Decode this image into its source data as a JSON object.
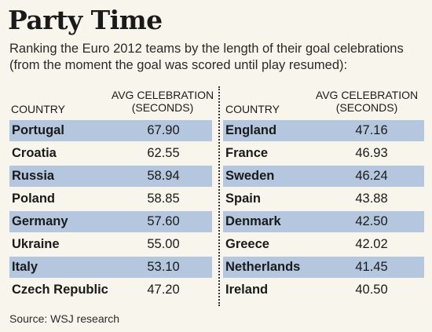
{
  "chart_data": {
    "type": "table",
    "title": "Party Time",
    "subtitle_lines": [
      "Ranking the Euro 2012 teams by the length of their goal celebrations",
      "(from the moment the goal was scored until play resumed):"
    ],
    "column_headers": {
      "country": "COUNTRY",
      "value_line1": "AVG CELEBRATION",
      "value_line2": "(SECONDS)"
    },
    "rows_left": [
      {
        "country": "Portugal",
        "value": "67.90"
      },
      {
        "country": "Croatia",
        "value": "62.55"
      },
      {
        "country": "Russia",
        "value": "58.94"
      },
      {
        "country": "Poland",
        "value": "58.85"
      },
      {
        "country": "Germany",
        "value": "57.60"
      },
      {
        "country": "Ukraine",
        "value": "55.00"
      },
      {
        "country": "Italy",
        "value": "53.10"
      },
      {
        "country": "Czech Republic",
        "value": "47.20"
      }
    ],
    "rows_right": [
      {
        "country": "England",
        "value": "47.16"
      },
      {
        "country": "France",
        "value": "46.93"
      },
      {
        "country": "Sweden",
        "value": "46.24"
      },
      {
        "country": "Spain",
        "value": "43.88"
      },
      {
        "country": "Denmark",
        "value": "42.50"
      },
      {
        "country": "Greece",
        "value": "42.02"
      },
      {
        "country": "Netherlands",
        "value": "41.45"
      },
      {
        "country": "Ireland",
        "value": "40.50"
      }
    ],
    "source": "Source: WSJ research",
    "band_color": "#b5c7df"
  }
}
